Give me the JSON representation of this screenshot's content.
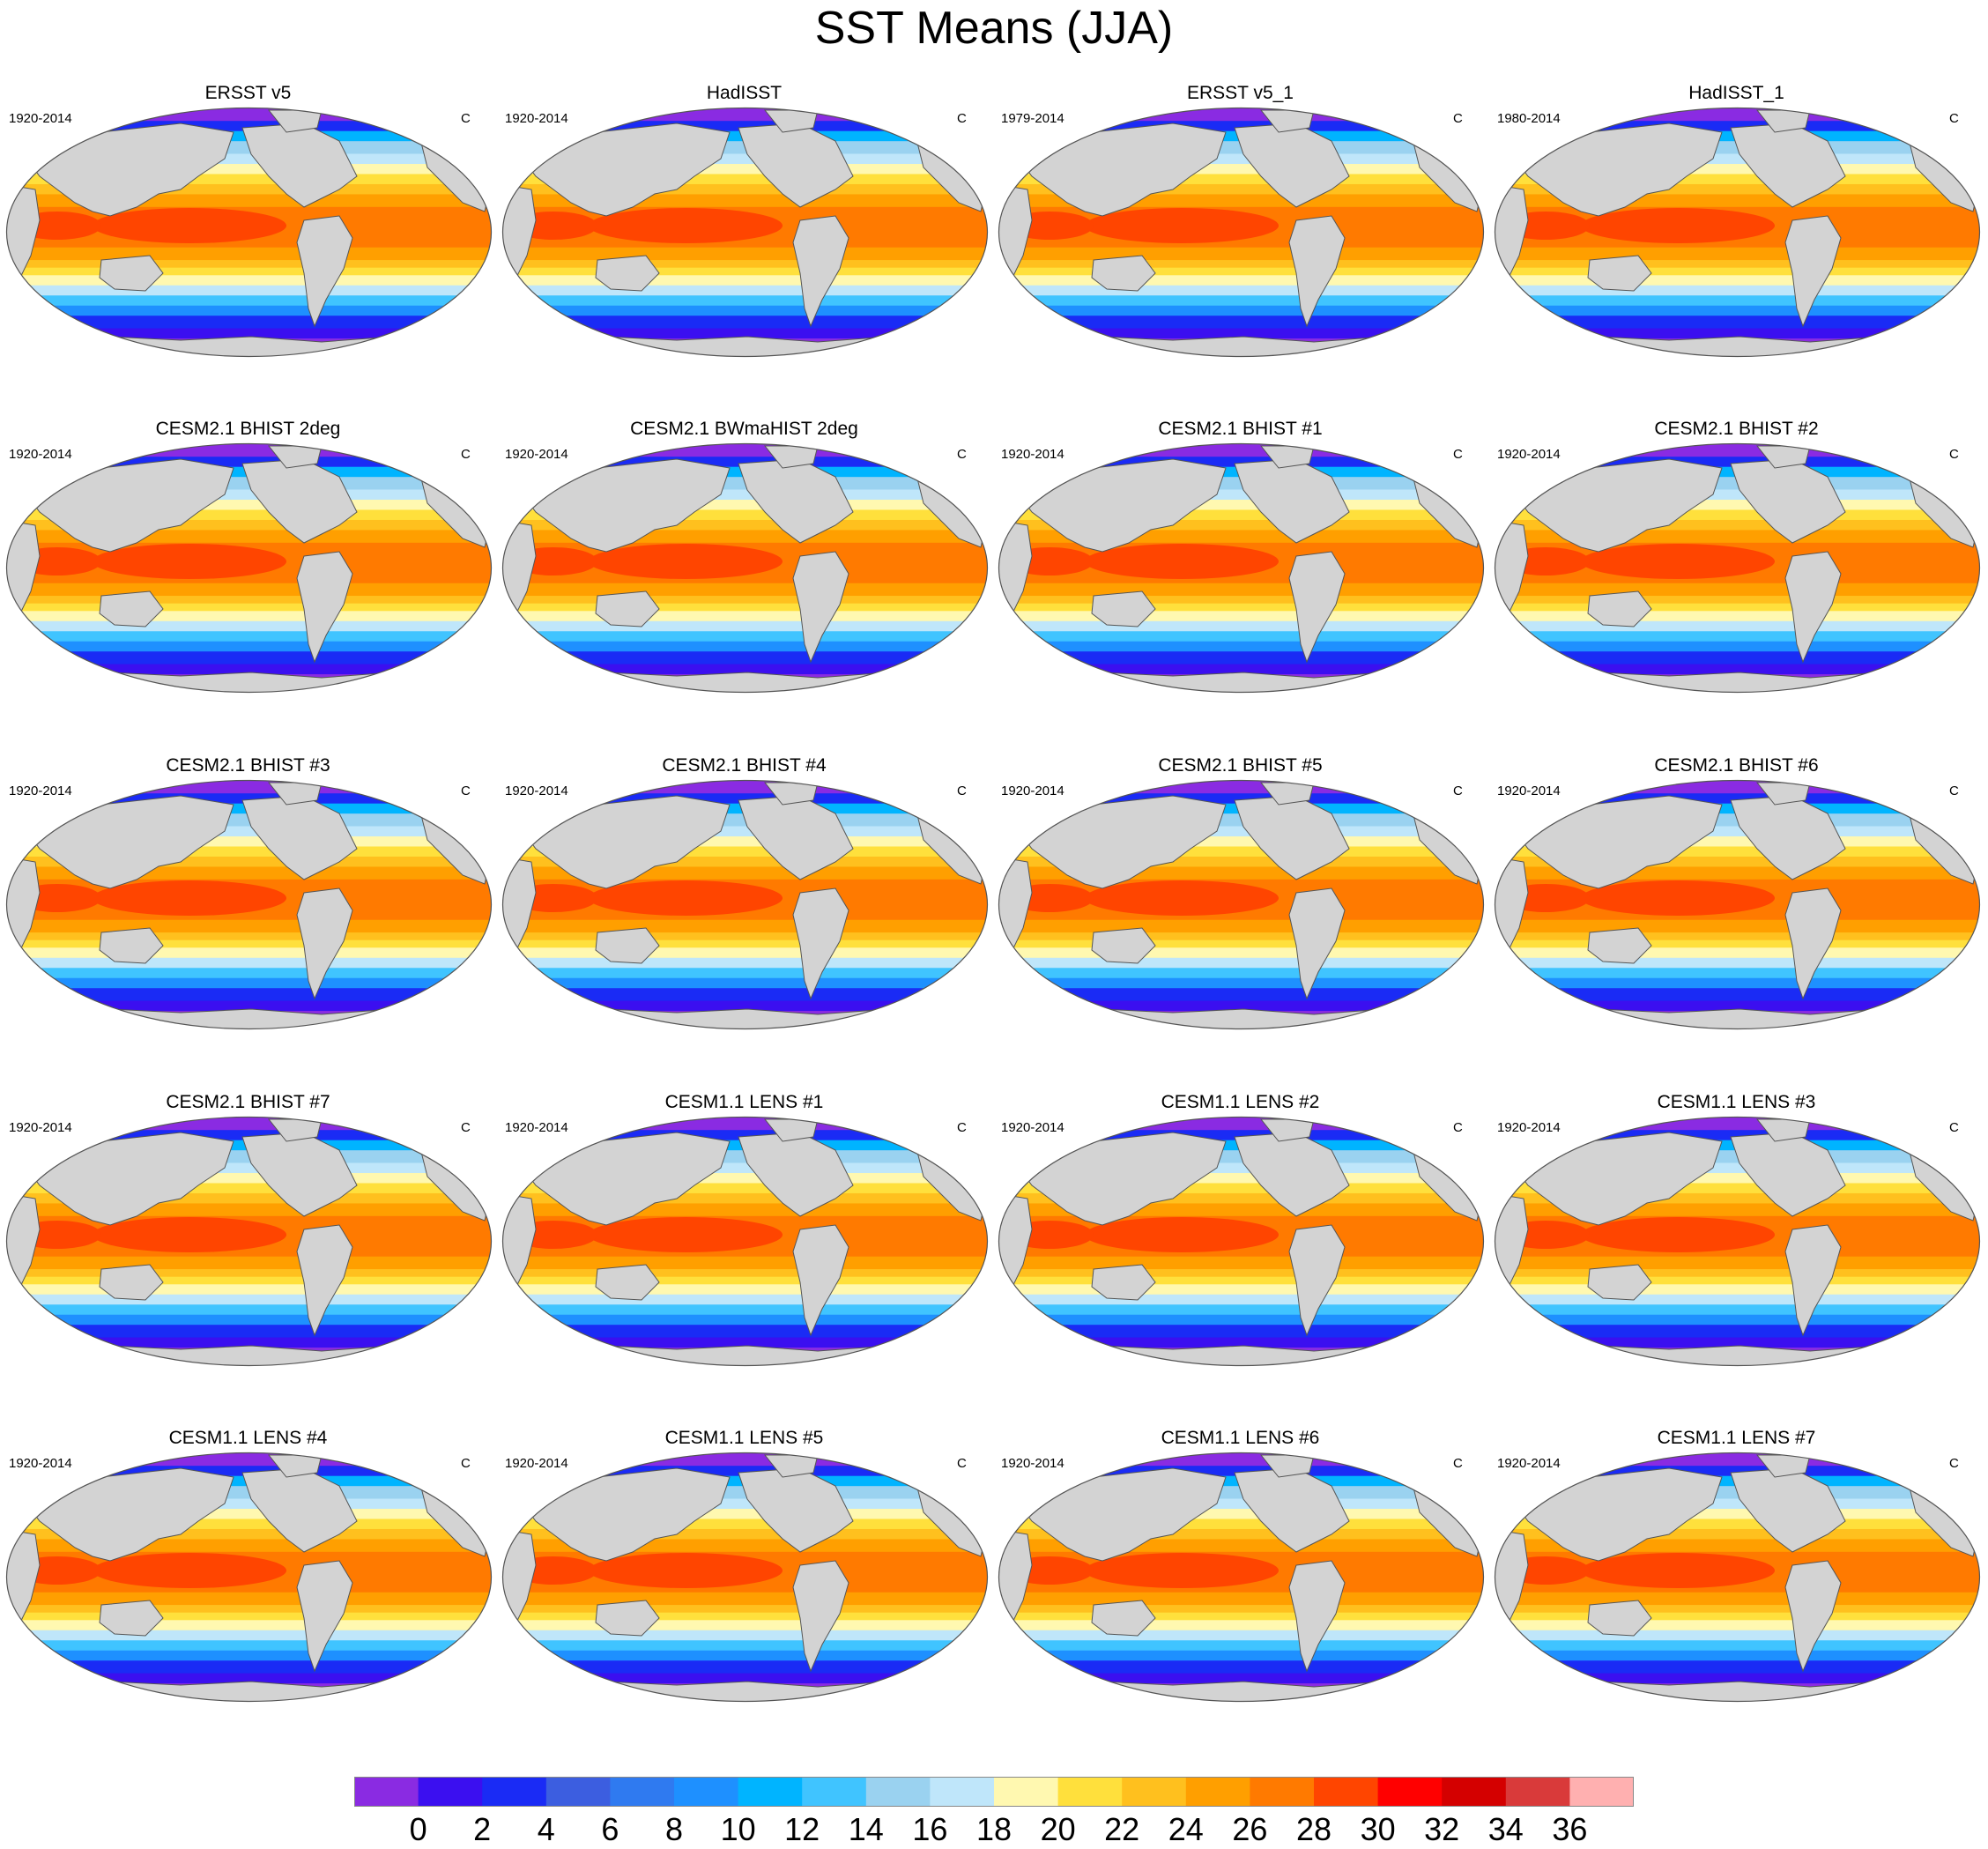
{
  "figure": {
    "title": "SST Means (JJA)"
  },
  "units": "C",
  "panels": [
    {
      "title": "ERSST v5",
      "years": "1920-2014"
    },
    {
      "title": "HadISST",
      "years": "1920-2014"
    },
    {
      "title": "ERSST v5_1",
      "years": "1979-2014"
    },
    {
      "title": "HadISST_1",
      "years": "1980-2014"
    },
    {
      "title": "CESM2.1 BHIST 2deg",
      "years": "1920-2014"
    },
    {
      "title": "CESM2.1 BWmaHIST 2deg",
      "years": "1920-2014"
    },
    {
      "title": "CESM2.1 BHIST #1",
      "years": "1920-2014"
    },
    {
      "title": "CESM2.1 BHIST #2",
      "years": "1920-2014"
    },
    {
      "title": "CESM2.1 BHIST #3",
      "years": "1920-2014"
    },
    {
      "title": "CESM2.1 BHIST #4",
      "years": "1920-2014"
    },
    {
      "title": "CESM2.1 BHIST #5",
      "years": "1920-2014"
    },
    {
      "title": "CESM2.1 BHIST #6",
      "years": "1920-2014"
    },
    {
      "title": "CESM2.1 BHIST #7",
      "years": "1920-2014"
    },
    {
      "title": "CESM1.1 LENS #1",
      "years": "1920-2014"
    },
    {
      "title": "CESM1.1 LENS #2",
      "years": "1920-2014"
    },
    {
      "title": "CESM1.1 LENS #3",
      "years": "1920-2014"
    },
    {
      "title": "CESM1.1 LENS #4",
      "years": "1920-2014"
    },
    {
      "title": "CESM1.1 LENS #5",
      "years": "1920-2014"
    },
    {
      "title": "CESM1.1 LENS #6",
      "years": "1920-2014"
    },
    {
      "title": "CESM1.1 LENS #7",
      "years": "1920-2014"
    }
  ],
  "colorbar": {
    "labels": [
      "0",
      "2",
      "4",
      "6",
      "8",
      "10",
      "12",
      "14",
      "16",
      "18",
      "20",
      "22",
      "24",
      "26",
      "28",
      "30",
      "32",
      "34",
      "36"
    ],
    "colors": [
      "#8a2be2",
      "#3b0ff0",
      "#1a2bf5",
      "#3c5ee0",
      "#2f7af0",
      "#1e90ff",
      "#00b4ff",
      "#40c4ff",
      "#9ad2f0",
      "#bfe6fa",
      "#fff8b0",
      "#ffe03c",
      "#ffc01e",
      "#ff9f00",
      "#ff7a00",
      "#ff4500",
      "#ff0000",
      "#d40000",
      "#d93a3a",
      "#ffb0b0"
    ]
  },
  "colors": {
    "land": "#d3d3d3",
    "coast": "#555555",
    "background": "#ffffff"
  }
}
